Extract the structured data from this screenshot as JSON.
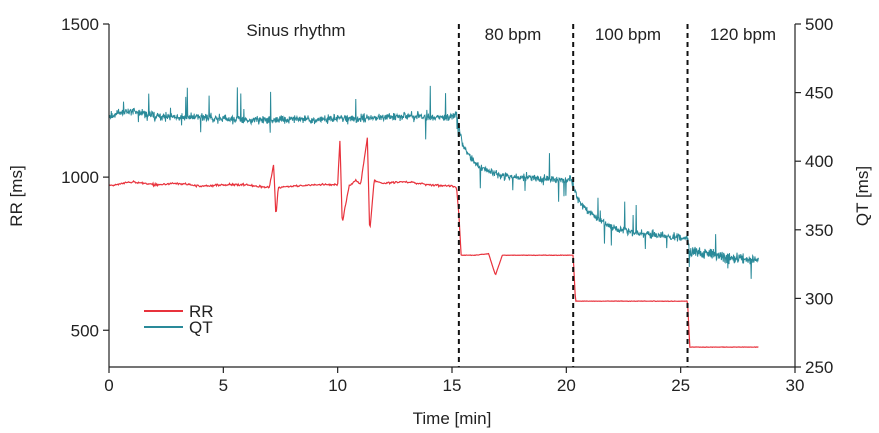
{
  "chart_data": {
    "type": "line",
    "xlabel": "Time [min]",
    "ylabel_left": "RR [ms]",
    "ylabel_right": "QT [ms]",
    "xlim": [
      0,
      30
    ],
    "ylim_left": [
      380,
      1500
    ],
    "ylim_right": [
      250,
      500
    ],
    "x_ticks": [
      "0",
      "5",
      "10",
      "15",
      "20",
      "25",
      "30"
    ],
    "y_left_ticks": [
      "500",
      "1000",
      "1500"
    ],
    "y_right_ticks": [
      "250",
      "300",
      "350",
      "400",
      "450",
      "500"
    ],
    "grid": false,
    "legend_position": "bottom-left",
    "sections": [
      {
        "label": "Sinus rhythm",
        "x_start": 0,
        "x_end": 15.3
      },
      {
        "label": "80 bpm",
        "x_start": 15.3,
        "x_end": 20.3
      },
      {
        "label": "100 bpm",
        "x_start": 20.3,
        "x_end": 25.3
      },
      {
        "label": "120 bpm",
        "x_start": 25.3,
        "x_end": 28.5
      }
    ],
    "pacing_change_times": [
      15.3,
      20.3,
      25.3
    ],
    "series": [
      {
        "name": "RR",
        "axis": "left",
        "color": "#e8323c",
        "x": [
          0,
          1,
          2,
          3,
          4,
          5,
          6,
          7,
          7.2,
          7.3,
          7.4,
          8,
          9,
          10,
          10.1,
          10.2,
          10.5,
          10.8,
          11.0,
          11.3,
          11.4,
          11.6,
          12,
          13,
          14,
          15,
          15.2,
          15.3,
          15.4,
          16,
          16.6,
          16.9,
          17.2,
          18,
          19,
          20.2,
          20.3,
          20.4,
          22,
          24,
          25.3,
          25.4,
          26,
          27,
          28.4
        ],
        "values": [
          970,
          985,
          975,
          980,
          970,
          975,
          975,
          965,
          1040,
          870,
          965,
          970,
          975,
          975,
          1120,
          850,
          970,
          990,
          975,
          1130,
          820,
          990,
          980,
          985,
          975,
          970,
          965,
          880,
          745,
          745,
          750,
          680,
          745,
          745,
          745,
          745,
          745,
          595,
          595,
          595,
          595,
          445,
          445,
          445,
          445
        ]
      },
      {
        "name": "QT",
        "axis": "right",
        "color": "#2a8a99",
        "x": [
          0,
          0.5,
          1,
          1.5,
          2,
          3,
          4,
          5,
          6,
          7,
          8,
          9,
          10,
          11,
          12,
          13,
          14,
          15,
          15.2,
          15.3,
          15.5,
          16,
          17,
          18,
          19,
          20,
          20.2,
          20.3,
          20.5,
          21,
          22,
          23,
          24,
          25,
          25.3,
          25.4,
          26,
          27,
          28,
          28.4
        ],
        "values": [
          432,
          435,
          437,
          434,
          433,
          432,
          433,
          431,
          430,
          430,
          431,
          430,
          432,
          431,
          432,
          433,
          432,
          433,
          435,
          425,
          410,
          398,
          390,
          388,
          387,
          386,
          388,
          382,
          372,
          362,
          352,
          348,
          346,
          344,
          344,
          334,
          333,
          330,
          329,
          328
        ]
      }
    ]
  }
}
